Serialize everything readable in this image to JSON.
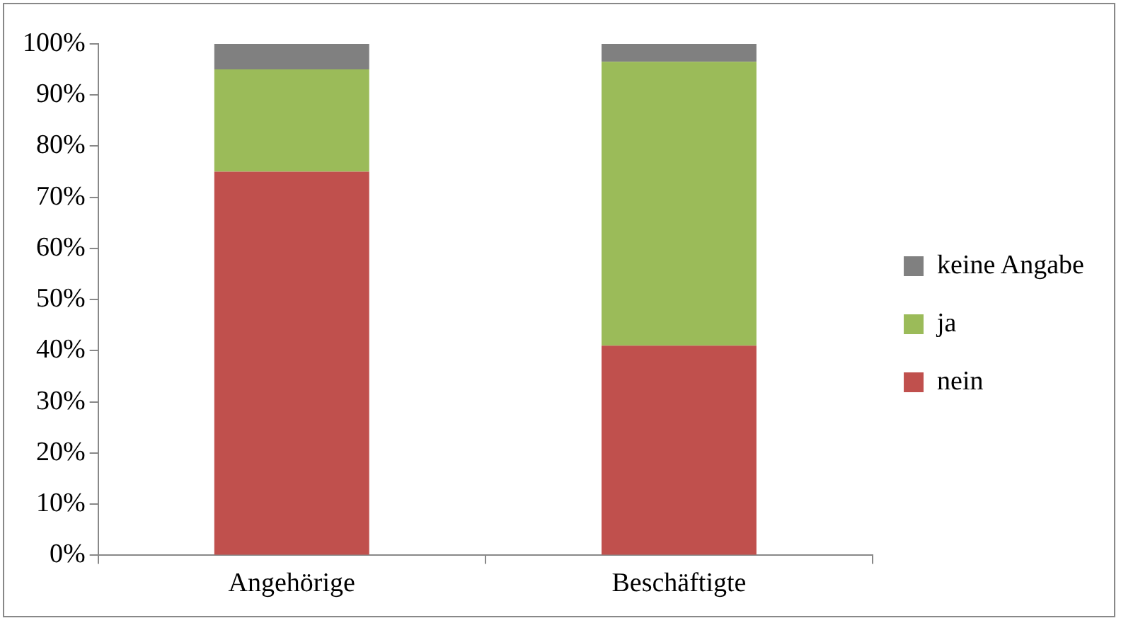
{
  "chart_data": {
    "type": "bar",
    "stacked": true,
    "categories": [
      "Angehörige",
      "Beschäftigte"
    ],
    "series": [
      {
        "name": "nein",
        "color": "#c0504d",
        "values": [
          75,
          41
        ]
      },
      {
        "name": "ja",
        "color": "#9bbb59",
        "values": [
          20,
          55.5
        ]
      },
      {
        "name": "keine Angabe",
        "color": "#808080",
        "values": [
          5,
          3.5
        ]
      }
    ],
    "ylim": [
      0,
      100
    ],
    "yticks": [
      {
        "value": 0,
        "label": "0%"
      },
      {
        "value": 10,
        "label": "10%"
      },
      {
        "value": 20,
        "label": "20%"
      },
      {
        "value": 30,
        "label": "30%"
      },
      {
        "value": 40,
        "label": "40%"
      },
      {
        "value": 50,
        "label": "50%"
      },
      {
        "value": 60,
        "label": "60%"
      },
      {
        "value": 70,
        "label": "70%"
      },
      {
        "value": 80,
        "label": "80%"
      },
      {
        "value": 90,
        "label": "90%"
      },
      {
        "value": 100,
        "label": "100%"
      }
    ],
    "grid": false,
    "legend": "right"
  }
}
